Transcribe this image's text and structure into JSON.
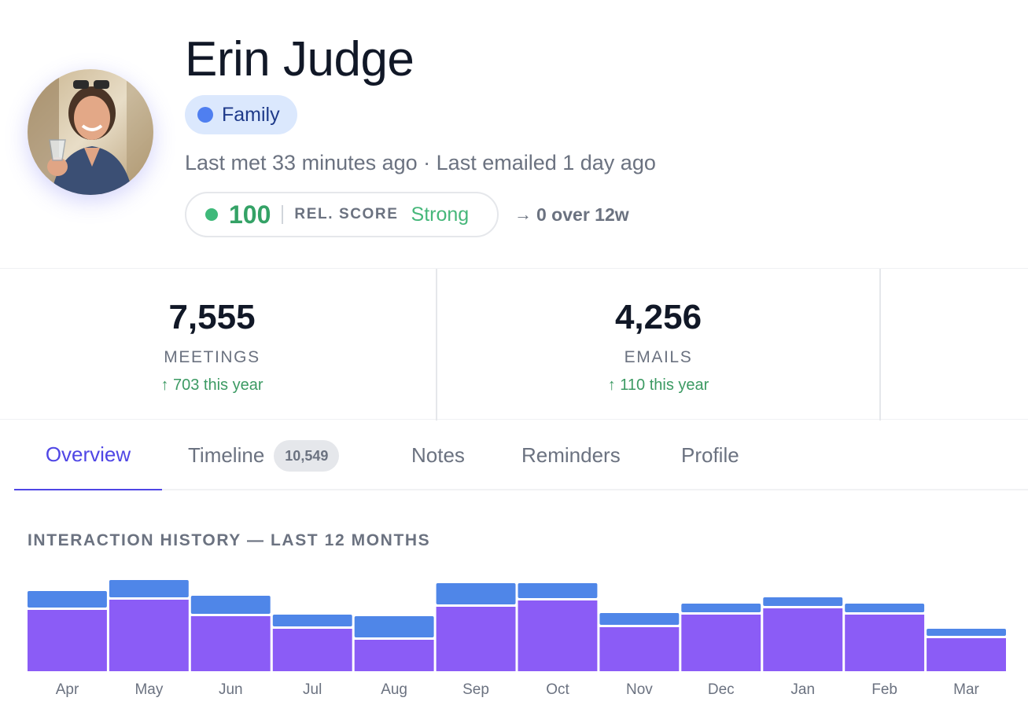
{
  "contact": {
    "name": "Erin Judge",
    "tag": "Family",
    "last_seen": "Last met 33 minutes ago · Last emailed 1 day ago"
  },
  "score": {
    "value": "100",
    "label": "REL. SCORE",
    "status": "Strong",
    "trend": "0 over 12w"
  },
  "stats": {
    "meetings": {
      "value": "7,555",
      "label": "MEETINGS",
      "change": "↑ 703 this year"
    },
    "emails": {
      "value": "4,256",
      "label": "EMAILS",
      "change": "↑ 110 this year"
    }
  },
  "tabs": {
    "overview": "Overview",
    "timeline": "Timeline",
    "timeline_count": "10,549",
    "notes": "Notes",
    "reminders": "Reminders",
    "profile": "Profile",
    "active": "Overview"
  },
  "icons": {
    "tag": "dot-icon",
    "score": "status-dot-icon",
    "trend": "arrow-right-icon"
  },
  "colors": {
    "accent": "#4f46e5",
    "meetings": "#8b5cf6",
    "emails": "#4f86e8",
    "positive": "#3c9a63",
    "tag_bg": "#dbe8fd"
  },
  "chart_data": {
    "type": "bar",
    "stacked": true,
    "title": "INTERACTION HISTORY — LAST 12 MONTHS",
    "categories": [
      "Apr",
      "May",
      "Jun",
      "Jul",
      "Aug",
      "Sep",
      "Oct",
      "Nov",
      "Dec",
      "Jan",
      "Feb",
      "Mar"
    ],
    "series": [
      {
        "values": [
          78,
          91,
          70,
          54,
          40,
          82,
          90,
          56,
          72,
          80,
          72,
          42
        ]
      },
      {
        "values": [
          24,
          25,
          26,
          18,
          30,
          30,
          22,
          18,
          14,
          14,
          14,
          12
        ]
      }
    ],
    "ylim": [
      0,
      120
    ]
  }
}
